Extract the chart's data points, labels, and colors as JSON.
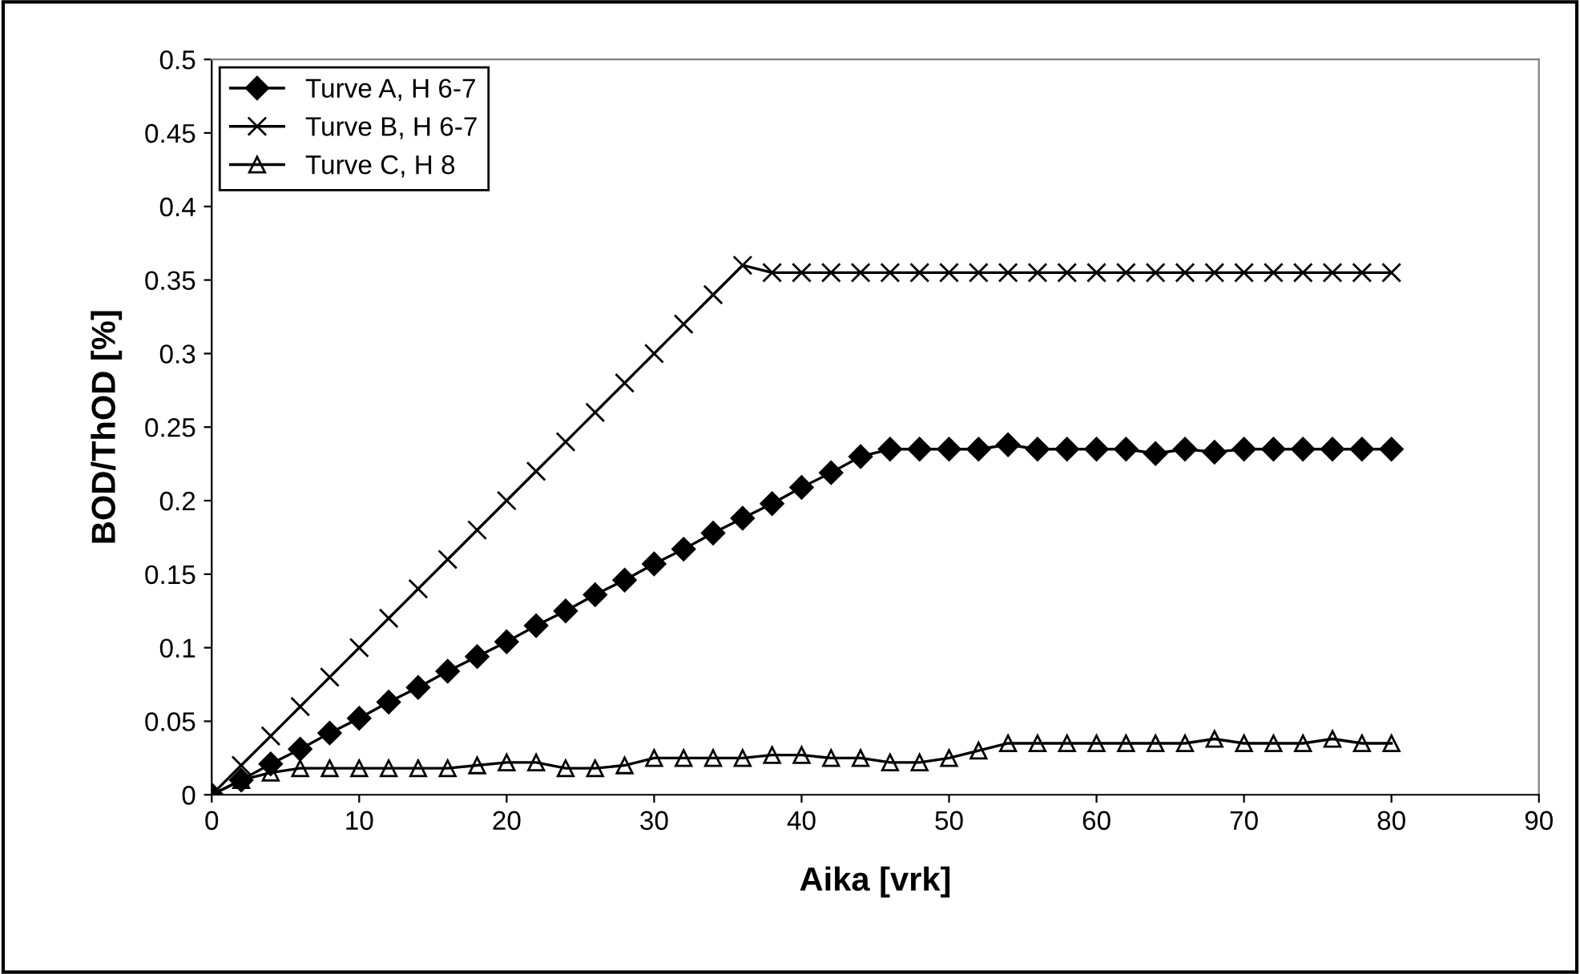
{
  "chart_data": {
    "type": "line",
    "xlabel": "Aika [vrk]",
    "ylabel": "BOD/ThOD [%]",
    "xlim": [
      0,
      90
    ],
    "xticks": [
      0,
      10,
      20,
      30,
      40,
      50,
      60,
      70,
      80,
      90
    ],
    "ylim": [
      0,
      0.5
    ],
    "yticks": [
      0,
      0.05,
      0.1,
      0.15,
      0.2,
      0.25,
      0.3,
      0.35,
      0.4,
      0.45,
      0.5
    ],
    "grid": false,
    "legend": "top left",
    "x": [
      0,
      2,
      4,
      6,
      8,
      10,
      12,
      14,
      16,
      18,
      20,
      22,
      24,
      26,
      28,
      30,
      32,
      34,
      36,
      38,
      40,
      42,
      44,
      46,
      48,
      50,
      52,
      54,
      56,
      58,
      60,
      62,
      64,
      66,
      68,
      70,
      72,
      74,
      76,
      78,
      80
    ],
    "series": [
      {
        "name": "Turve A, H 6-7",
        "color": "#000000",
        "marker": "diamond",
        "values": [
          0,
          0.01,
          0.021,
          0.031,
          0.042,
          0.052,
          0.063,
          0.073,
          0.084,
          0.094,
          0.104,
          0.115,
          0.125,
          0.136,
          0.146,
          0.157,
          0.167,
          0.178,
          0.188,
          0.198,
          0.209,
          0.219,
          0.23,
          0.235,
          0.235,
          0.235,
          0.235,
          0.238,
          0.235,
          0.235,
          0.235,
          0.235,
          0.232,
          0.235,
          0.233,
          0.235,
          0.235,
          0.235,
          0.235,
          0.235,
          0.235
        ]
      },
      {
        "name": "Turve B, H 6-7",
        "color": "#000000",
        "marker": "cross",
        "values": [
          0,
          0.02,
          0.04,
          0.06,
          0.08,
          0.1,
          0.12,
          0.14,
          0.16,
          0.18,
          0.2,
          0.22,
          0.24,
          0.26,
          0.28,
          0.3,
          0.32,
          0.34,
          0.36,
          0.355,
          0.355,
          0.355,
          0.355,
          0.355,
          0.355,
          0.355,
          0.355,
          0.355,
          0.355,
          0.355,
          0.355,
          0.355,
          0.355,
          0.355,
          0.355,
          0.355,
          0.355,
          0.355,
          0.355,
          0.355,
          0.355
        ]
      },
      {
        "name": "Turve C, H 8",
        "color": "#000000",
        "marker": "triangle",
        "values": [
          0,
          0.01,
          0.015,
          0.018,
          0.018,
          0.018,
          0.018,
          0.018,
          0.018,
          0.02,
          0.022,
          0.022,
          0.018,
          0.018,
          0.02,
          0.025,
          0.025,
          0.025,
          0.025,
          0.027,
          0.027,
          0.025,
          0.025,
          0.022,
          0.022,
          0.025,
          0.03,
          0.035,
          0.035,
          0.035,
          0.035,
          0.035,
          0.035,
          0.035,
          0.038,
          0.035,
          0.035,
          0.035,
          0.038,
          0.035,
          0.035
        ]
      }
    ]
  }
}
